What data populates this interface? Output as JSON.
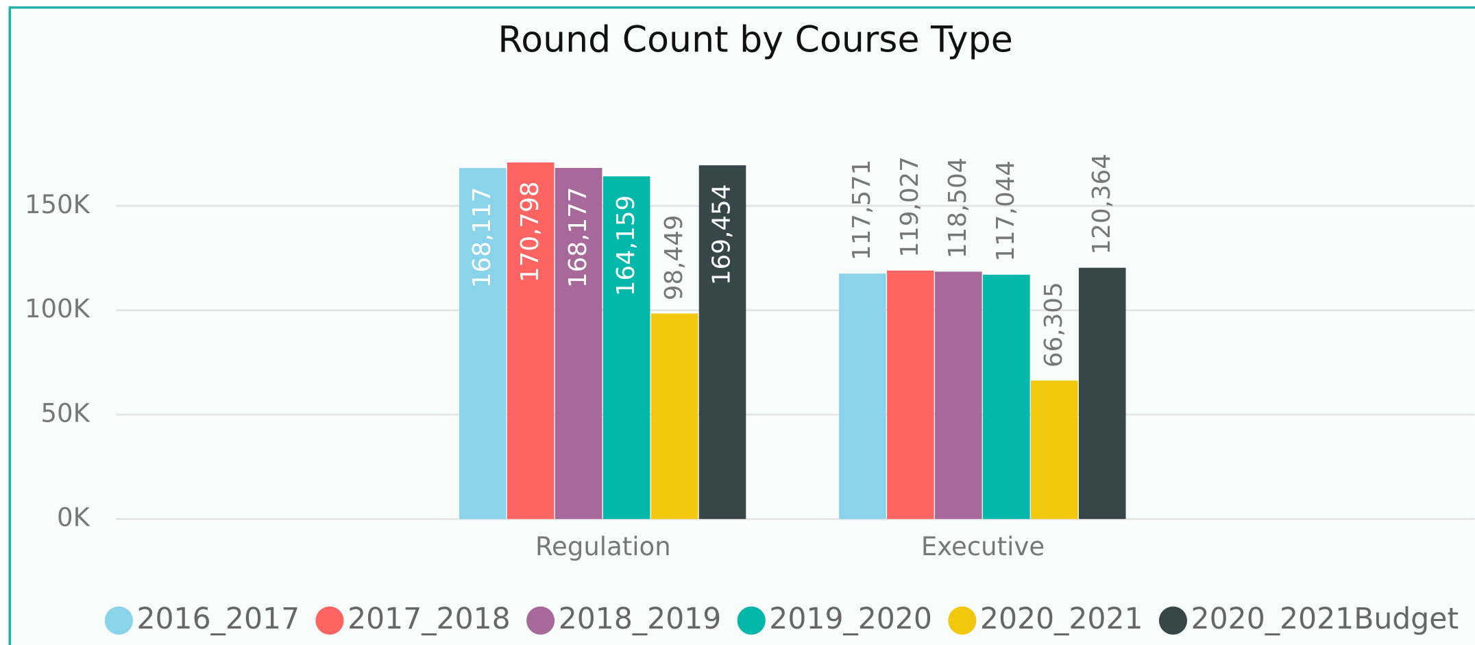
{
  "chart_data": {
    "type": "bar",
    "title": "Round Count by Course Type",
    "categories": [
      "Regulation",
      "Executive"
    ],
    "series": [
      {
        "name": "2016_2017",
        "color": "#8AD4EB",
        "values": [
          168117,
          117571
        ],
        "value_labels": [
          "168,117",
          "117,571"
        ]
      },
      {
        "name": "2017_2018",
        "color": "#FE6462",
        "values": [
          170798,
          119027
        ],
        "value_labels": [
          "170,798",
          "119,027"
        ]
      },
      {
        "name": "2018_2019",
        "color": "#A66999",
        "values": [
          168177,
          118504
        ],
        "value_labels": [
          "168,177",
          "118,504"
        ]
      },
      {
        "name": "2019_2020",
        "color": "#01B8AA",
        "values": [
          164159,
          117044
        ],
        "value_labels": [
          "164,159",
          "117,044"
        ]
      },
      {
        "name": "2020_2021",
        "color": "#F2C80F",
        "values": [
          98449,
          66305
        ],
        "value_labels": [
          "98,449",
          "66,305"
        ]
      },
      {
        "name": "2020_2021Budget",
        "color": "#374649",
        "values": [
          169454,
          120364
        ],
        "value_labels": [
          "169,454",
          "120,364"
        ]
      }
    ],
    "ylim": [
      0,
      200000
    ],
    "yticks": [
      {
        "value": 0,
        "label": "0K"
      },
      {
        "value": 50000,
        "label": "50K"
      },
      {
        "value": 100000,
        "label": "100K"
      },
      {
        "value": 150000,
        "label": "150K"
      }
    ],
    "grid": true,
    "legend": "bottom"
  }
}
